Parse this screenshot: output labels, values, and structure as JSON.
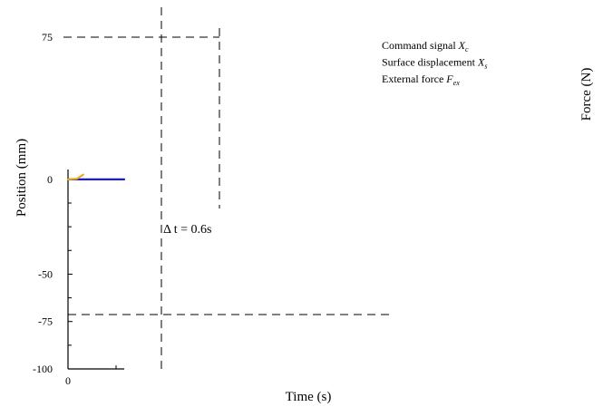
{
  "chart_data": {
    "type": "line",
    "xlabel": "Time (s)",
    "ylabel": "Position  (mm)",
    "y2label": "Force  (N)",
    "xlim": [
      0,
      1
    ],
    "ylim": [
      -100,
      75
    ],
    "x_ticks": [
      {
        "value": 0,
        "label": "0"
      }
    ],
    "y_ticks": [
      {
        "value": 75,
        "label": "75"
      },
      {
        "value": 0,
        "label": "0"
      },
      {
        "value": -50,
        "label": "-50"
      },
      {
        "value": -75,
        "label": "-75"
      },
      {
        "value": -100,
        "label": "-100"
      }
    ],
    "y_minor_ticks": [
      -87.5,
      -62.5,
      -37.5,
      -25,
      -12.5
    ],
    "x_minor_ticks": [
      1
    ],
    "legend": [
      {
        "base": "Command signal ",
        "symbol": "X",
        "sub": "c"
      },
      {
        "base": "Surface displacement ",
        "symbol": "X",
        "sub": "s"
      },
      {
        "base": "External force ",
        "symbol": "F",
        "sub": "ex"
      }
    ],
    "legend_position": "top-right",
    "annotation": {
      "text": "Δ t = 0.6s"
    },
    "reference_lines": {
      "upper_y": 75,
      "lower_y": -75
    },
    "series": [
      {
        "color": "#1a1adc",
        "x": [
          0,
          1
        ],
        "y": [
          0,
          0
        ]
      },
      {
        "color": "#f2a51a",
        "x": [
          0,
          0.16,
          0.27
        ],
        "y": [
          0,
          0.3,
          2.5
        ]
      }
    ],
    "grid": false
  }
}
